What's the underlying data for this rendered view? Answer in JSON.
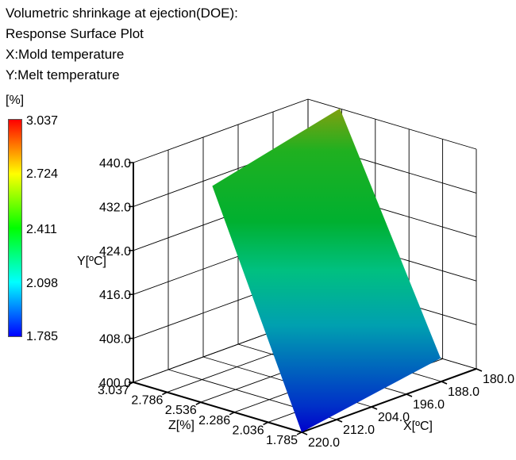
{
  "chart_data": {
    "type": "surface",
    "title_lines": [
      "Volumetric shrinkage at ejection(DOE):",
      "Response Surface Plot",
      "X:Mold temperature",
      "Y:Melt temperature"
    ],
    "xlabel": "X[ºC]",
    "ylabel": "Y[ºC]",
    "zlabel": "Z[%]",
    "x_ticks": [
      "180.0",
      "188.0",
      "196.0",
      "204.0",
      "212.0",
      "220.0"
    ],
    "y_ticks": [
      "400.0",
      "408.0",
      "416.0",
      "424.0",
      "432.0",
      "440.0"
    ],
    "z_ticks": [
      "3.037",
      "2.786",
      "2.536",
      "2.286",
      "2.036",
      "1.785"
    ],
    "xlim": [
      180,
      220
    ],
    "ylim": [
      400,
      440
    ],
    "zlim": [
      1.785,
      3.037
    ],
    "surface_corners": [
      {
        "x": 180,
        "y": 400,
        "z": 2.05
      },
      {
        "x": 220,
        "y": 400,
        "z": 1.785
      },
      {
        "x": 180,
        "y": 440,
        "z": 2.8
      },
      {
        "x": 220,
        "y": 440,
        "z": 2.45
      }
    ],
    "colorbar": {
      "unit": "[%]",
      "labels": [
        "3.037",
        "2.724",
        "2.411",
        "2.098",
        "1.785"
      ],
      "colors": [
        "#ff0000",
        "#ffff00",
        "#00ff00",
        "#00ffff",
        "#0000ff"
      ]
    },
    "grid": true
  }
}
